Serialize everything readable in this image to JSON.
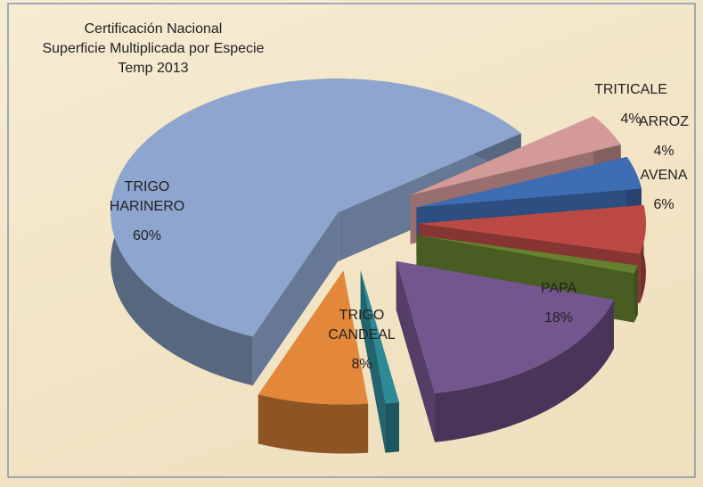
{
  "chart_data": {
    "type": "pie3d",
    "title": "Certificación Nacional\nSuperficie Multiplicada por Especie\nTemp 2013",
    "categories": [
      "TRIGO\nHARINERO",
      "TRITICALE",
      "ARROZ",
      "AVENA",
      null,
      "PAPA",
      null,
      "TRIGO\nCANDEAL"
    ],
    "values": [
      60,
      4,
      4,
      6,
      1,
      18,
      1,
      8
    ],
    "value_labels": [
      "60%",
      "4%",
      "4%",
      "6%",
      null,
      "18%",
      null,
      "8%"
    ],
    "colors": [
      "#8ea6cf",
      "#d39a99",
      "#3f6db3",
      "#bb4a45",
      "#65802f",
      "#74568f",
      "#2f8a98",
      "#e3883a"
    ]
  }
}
